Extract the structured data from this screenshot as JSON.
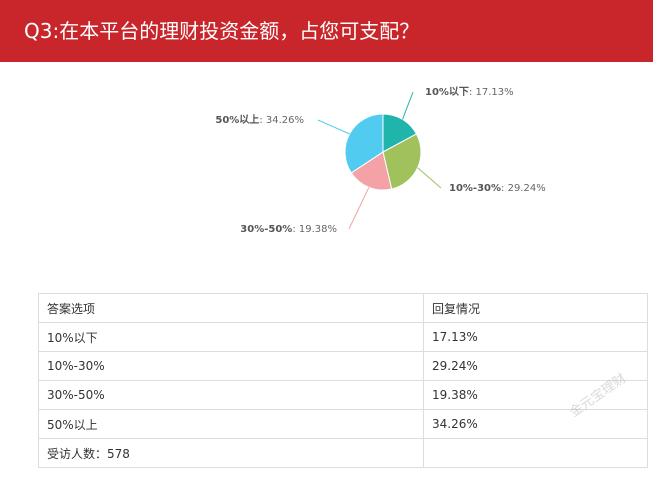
{
  "header": {
    "title": "Q3:在本平台的理财投资金额，占您可支配？"
  },
  "chart_data": {
    "type": "pie",
    "title": "",
    "slices": [
      {
        "category": "10%以下",
        "value": 17.13,
        "label": "17.13%",
        "color": "#1fb5ad"
      },
      {
        "category": "10%-30%",
        "value": 29.24,
        "label": "29.24%",
        "color": "#a1c15c"
      },
      {
        "category": "30%-50%",
        "value": 19.38,
        "label": "19.38%",
        "color": "#f4a2a6"
      },
      {
        "category": "50%以上",
        "value": 34.26,
        "label": "34.26%",
        "color": "#52cbf0"
      }
    ],
    "start_angle_deg": 0,
    "direction": "clockwise"
  },
  "table": {
    "headers": [
      "答案选项",
      "回复情况"
    ],
    "rows": [
      [
        "10%以下",
        "17.13%"
      ],
      [
        "10%-30%",
        "29.24%"
      ],
      [
        "30%-50%",
        "19.38%"
      ],
      [
        "50%以上",
        "34.26%"
      ]
    ],
    "footer": "受访人数：578"
  },
  "watermark": "金元宝理财"
}
